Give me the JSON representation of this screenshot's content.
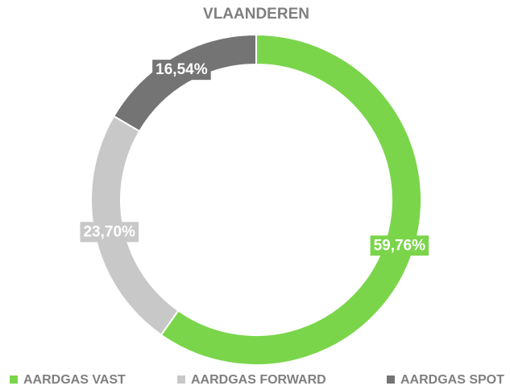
{
  "chart_data": {
    "type": "donut",
    "title": "VLAANDEREN",
    "categories": [
      "AARDGAS VAST",
      "AARDGAS FORWARD",
      "AARDGAS SPOT"
    ],
    "values": [
      59.76,
      23.7,
      16.54
    ],
    "value_labels": [
      "59,76%",
      "23,70%",
      "16,54%"
    ],
    "colors": [
      "#7ad54b",
      "#c8c8c8",
      "#747474"
    ],
    "legend": "bottom"
  }
}
